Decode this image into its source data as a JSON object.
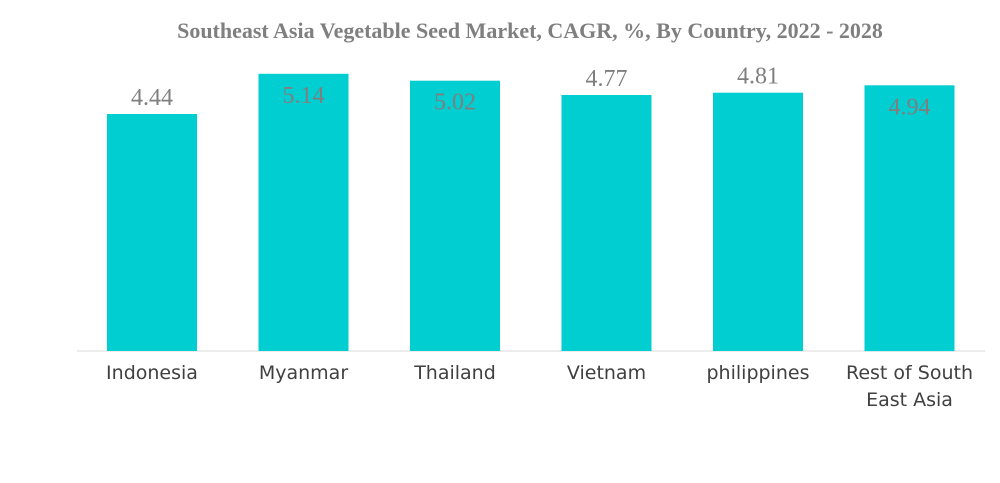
{
  "chart_data": {
    "type": "bar",
    "title": "Southeast Asia Vegetable Seed Market, CAGR, %, By Country, 2022 - 2028",
    "categories": [
      "Indonesia",
      "Myanmar",
      "Thailand",
      "Vietnam",
      "philippines",
      "Rest of South East Asia"
    ],
    "category_lines": [
      [
        "Indonesia"
      ],
      [
        "Myanmar"
      ],
      [
        "Thailand"
      ],
      [
        "Vietnam"
      ],
      [
        "philippines"
      ],
      [
        "Rest of South",
        "East Asia"
      ]
    ],
    "values": [
      4.44,
      5.14,
      5.02,
      4.77,
      4.81,
      4.94
    ],
    "value_labels": [
      "4.44",
      "5.14",
      "5.02",
      "4.77",
      "4.81",
      "4.94"
    ],
    "xlabel": "",
    "ylabel": "",
    "grid": false,
    "legend": "none",
    "colors": {
      "bar": "#00CED1",
      "title": "#7F7F7F",
      "value_label": "#7F7F7F",
      "category_label": "#404040",
      "axis": "#D9D9D9"
    }
  }
}
